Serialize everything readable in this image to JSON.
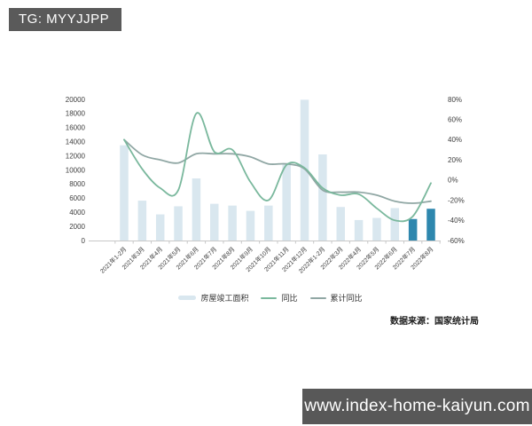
{
  "badge": {
    "text": "TG: MYYJJPP"
  },
  "watermark": {
    "text": "www.index-home-kaiyun.com"
  },
  "source_note": "数据来源：国家统计局",
  "colors": {
    "bar_light": "#d9e7ef",
    "bar_highlight": "#2e87ae",
    "line_yoy": "#7ab89d",
    "line_cum_yoy": "#90a7a4",
    "axis_text": "#3d3d3d",
    "axis_line": "#c8c8c8",
    "badge_bg": "#5a5a5a",
    "watermark_bg": "#585858"
  },
  "chart_data": {
    "type": "bar",
    "subtype": "combo-bar-line",
    "title": "",
    "xlabel": "",
    "ylabel": "",
    "grid": false,
    "legend_position": "bottom",
    "categories": [
      "2021年1-2月",
      "2021年3月",
      "2021年4月",
      "2021年5月",
      "2021年6月",
      "2021年7月",
      "2021年8月",
      "2021年9月",
      "2021年10月",
      "2021年11月",
      "2021年12月",
      "2022年1-2月",
      "2022年3月",
      "2022年4月",
      "2022年5月",
      "2022年6月",
      "2022年7月",
      "2022年8月"
    ],
    "series": [
      {
        "name": "房屋竣工面积",
        "type": "bar",
        "axis": "left",
        "values": [
          13500,
          5650,
          3700,
          4850,
          8800,
          5200,
          4950,
          4200,
          4950,
          10950,
          19950,
          12200,
          4750,
          2900,
          3200,
          4600,
          3050,
          4500
        ],
        "highlight_from": 16
      },
      {
        "name": "同比",
        "type": "line",
        "axis": "right",
        "values": [
          40,
          11,
          -8,
          -10,
          66,
          28,
          30,
          -2,
          -20,
          15,
          12,
          -8,
          -15,
          -14,
          -28,
          -40,
          -36,
          -3
        ]
      },
      {
        "name": "累计同比",
        "type": "line",
        "axis": "right",
        "values": [
          40,
          25,
          20,
          17,
          26,
          26,
          26,
          23,
          16,
          16,
          11,
          -10,
          -12,
          -12,
          -15,
          -21,
          -23,
          -21
        ]
      }
    ],
    "left_axis": {
      "min": 0,
      "max": 20000,
      "step": 2000,
      "labels": [
        "0",
        "2000",
        "4000",
        "6000",
        "8000",
        "10000",
        "12000",
        "14000",
        "16000",
        "18000",
        "20000"
      ]
    },
    "right_axis": {
      "min": -60,
      "max": 80,
      "step": 20,
      "labels": [
        "-60%",
        "-40%",
        "-20%",
        "0%",
        "20%",
        "40%",
        "60%",
        "80%"
      ]
    }
  }
}
